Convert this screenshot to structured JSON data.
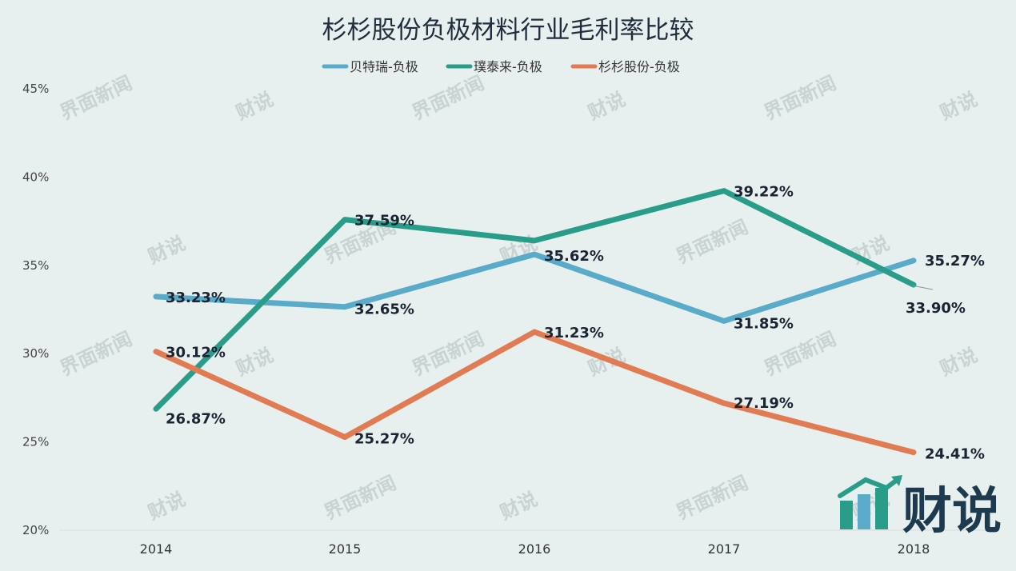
{
  "chart_data": {
    "type": "line",
    "title": "杉杉股份负极材料行业毛利率比较",
    "categories": [
      "2014",
      "2015",
      "2016",
      "2017",
      "2018"
    ],
    "yticks": [
      "20%",
      "25%",
      "30%",
      "35%",
      "40%",
      "45%"
    ],
    "ylim": [
      20,
      45
    ],
    "grid": false,
    "legend_position": "top-center",
    "series": [
      {
        "name": "贝特瑞-负极",
        "color": "#5aabc9",
        "values": [
          33.23,
          32.65,
          35.62,
          31.85,
          35.27
        ],
        "labels": [
          "33.23%",
          "32.65%",
          "35.62%",
          "31.85%",
          "35.27%"
        ]
      },
      {
        "name": "璞泰来-负极",
        "color": "#2a9d8a",
        "values": [
          26.87,
          37.59,
          36.4,
          39.22,
          33.9
        ],
        "labels": [
          "26.87%",
          "37.59%",
          "",
          "39.22%",
          "33.90%"
        ]
      },
      {
        "name": "杉杉股份-负极",
        "color": "#e07b53",
        "values": [
          30.12,
          25.27,
          31.23,
          27.19,
          24.41
        ],
        "labels": [
          "30.12%",
          "25.27%",
          "31.23%",
          "27.19%",
          "24.41%"
        ]
      }
    ]
  },
  "watermark": {
    "brand": "财说",
    "faint_text": "界面新闻"
  }
}
